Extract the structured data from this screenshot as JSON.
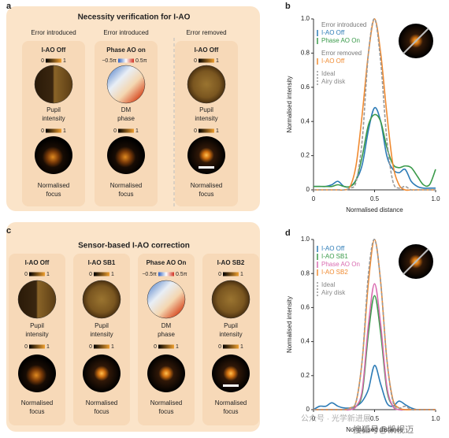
{
  "panel_a": {
    "label": "a",
    "title": "Necessity verification for I-AO",
    "columns": [
      {
        "header": "Error introduced",
        "card": "I-AO Off",
        "pupil_cbar": [
          "0",
          "1"
        ],
        "pupil_caption": [
          "Pupil",
          "intensity"
        ],
        "focus_cbar": [
          "0",
          "1"
        ],
        "focus_caption": [
          "Normalised",
          "focus"
        ]
      },
      {
        "header": "Error introduced",
        "card": "Phase AO on",
        "pupil_cbar": [
          "−0.5π",
          "0.5π"
        ],
        "pupil_caption": [
          "DM",
          "phase"
        ],
        "focus_cbar": [
          "0",
          "1"
        ],
        "focus_caption": [
          "Normalised",
          "focus"
        ]
      },
      {
        "header": "Error removed",
        "card": "I-AO Off",
        "pupil_cbar": [
          "0",
          "1"
        ],
        "pupil_caption": [
          "Pupil",
          "intensity"
        ],
        "focus_cbar": [
          "0",
          "1"
        ],
        "focus_caption": [
          "Normalised",
          "focus"
        ]
      }
    ]
  },
  "panel_c": {
    "label": "c",
    "title": "Sensor-based I-AO correction",
    "columns": [
      {
        "card": "I-AO Off",
        "pupil_cbar": [
          "0",
          "1"
        ],
        "pupil_caption": [
          "Pupil",
          "intensity"
        ],
        "focus_cbar": [
          "0",
          "1"
        ],
        "focus_caption": [
          "Normalised",
          "focus"
        ]
      },
      {
        "card": "I-AO SB1",
        "pupil_cbar": [
          "0",
          "1"
        ],
        "pupil_caption": [
          "Pupil",
          "intensity"
        ],
        "focus_cbar": [
          "0",
          "1"
        ],
        "focus_caption": [
          "Normalised",
          "focus"
        ]
      },
      {
        "card": "Phase AO On",
        "pupil_cbar": [
          "−0.5π",
          "0.5π"
        ],
        "pupil_caption": [
          "DM",
          "phase"
        ],
        "focus_cbar": [
          "0",
          "1"
        ],
        "focus_caption": [
          "Normalised",
          "focus"
        ]
      },
      {
        "card": "I-AO SB2",
        "pupil_cbar": [
          "0",
          "1"
        ],
        "pupil_caption": [
          "Pupil",
          "intensity"
        ],
        "focus_cbar": [
          "0",
          "1"
        ],
        "focus_caption": [
          "Normalised",
          "focus"
        ]
      }
    ]
  },
  "chart_data": [
    {
      "type": "line",
      "panel_label": "b",
      "x_label": "Normalised distance",
      "y_label": "Normalised intensity",
      "x": [
        0,
        0.05,
        0.1,
        0.15,
        0.2,
        0.25,
        0.3,
        0.35,
        0.4,
        0.45,
        0.5,
        0.55,
        0.6,
        0.65,
        0.7,
        0.75,
        0.8,
        0.85,
        0.9,
        0.95,
        1
      ],
      "xlim": [
        0,
        1
      ],
      "ylim": [
        0,
        1
      ],
      "xticks": [
        0,
        0.5,
        {
          "value": 1,
          "label": "1.0"
        }
      ],
      "yticks": [
        0,
        0.2,
        0.4,
        0.6,
        0.8,
        {
          "value": 1,
          "label": "1.0"
        }
      ],
      "series": [
        {
          "name": "I-AO Off",
          "group": "Error introduced",
          "color": "#2c7bb6",
          "values": [
            0.02,
            0.02,
            0.02,
            0.03,
            0.05,
            0.02,
            0.02,
            0.06,
            0.15,
            0.35,
            0.48,
            0.4,
            0.2,
            0.12,
            0.1,
            0.12,
            0.05,
            0.02,
            0.01,
            0.01,
            0.01
          ]
        },
        {
          "name": "Phase AO On",
          "group": "Error introduced",
          "color": "#3a9a4a",
          "values": [
            0.02,
            0.02,
            0.02,
            0.02,
            0.03,
            0.02,
            0.02,
            0.06,
            0.2,
            0.38,
            0.44,
            0.4,
            0.25,
            0.15,
            0.13,
            0.14,
            0.13,
            0.08,
            0.03,
            0.03,
            0.12
          ]
        },
        {
          "name": "I-AO Off",
          "group": "Error removed",
          "color": "#f08a30",
          "values": [
            0,
            0,
            0,
            0,
            0,
            0,
            0.02,
            0.15,
            0.45,
            0.8,
            1,
            0.8,
            0.45,
            0.15,
            0.03,
            0,
            0,
            0,
            0,
            0,
            0
          ]
        },
        {
          "name": "Airy disk",
          "group": "Ideal",
          "color": "#999999",
          "dashed": true,
          "values": [
            0,
            0,
            0,
            0,
            0,
            0,
            0.01,
            0.05,
            0.3,
            0.8,
            1,
            0.75,
            0.3,
            0.05,
            0.01,
            0.02,
            0,
            0,
            0,
            0,
            0
          ]
        }
      ]
    },
    {
      "type": "line",
      "panel_label": "d",
      "x_label": "Normalised distance",
      "y_label": "Normalised intensity",
      "x": [
        0,
        0.05,
        0.1,
        0.15,
        0.2,
        0.25,
        0.3,
        0.35,
        0.4,
        0.45,
        0.5,
        0.55,
        0.6,
        0.65,
        0.7,
        0.75,
        0.8,
        0.85,
        0.9,
        0.95,
        1
      ],
      "xlim": [
        0,
        1
      ],
      "ylim": [
        0,
        1
      ],
      "xticks": [
        0,
        0.5,
        {
          "value": 1,
          "label": "1.0"
        }
      ],
      "yticks": [
        0,
        0.2,
        0.4,
        0.6,
        0.8,
        {
          "value": 1,
          "label": "1.0"
        }
      ],
      "series": [
        {
          "name": "I-AO Off",
          "color": "#2c7bb6",
          "values": [
            0,
            0.02,
            0.02,
            0.04,
            0.02,
            0.01,
            0.01,
            0.02,
            0.05,
            0.12,
            0.26,
            0.15,
            0.04,
            0.02,
            0.05,
            0.03,
            0.01,
            0,
            0,
            0,
            0
          ]
        },
        {
          "name": "I-AO SB1",
          "color": "#3a9a4a",
          "values": [
            0,
            0,
            0,
            0,
            0,
            0,
            0,
            0.02,
            0.1,
            0.45,
            0.67,
            0.45,
            0.12,
            0.02,
            0,
            0,
            0,
            0,
            0,
            0,
            0
          ]
        },
        {
          "name": "Phase AO On",
          "color": "#d96bb0",
          "values": [
            0,
            0,
            0,
            0,
            0,
            0,
            0,
            0.02,
            0.12,
            0.5,
            0.74,
            0.5,
            0.14,
            0.02,
            0,
            0,
            0,
            0,
            0,
            0,
            0
          ]
        },
        {
          "name": "I-AO SB2",
          "color": "#f08a30",
          "values": [
            0,
            0,
            0,
            0,
            0,
            0,
            0.01,
            0.05,
            0.3,
            0.75,
            1,
            0.75,
            0.3,
            0.06,
            0.01,
            0,
            0,
            0,
            0,
            0,
            0
          ]
        },
        {
          "name": "Airy disk",
          "group": "Ideal",
          "color": "#999999",
          "dashed": true,
          "values": [
            0,
            0,
            0,
            0,
            0,
            0,
            0.01,
            0.05,
            0.3,
            0.8,
            1,
            0.75,
            0.3,
            0.05,
            0.01,
            0.02,
            0,
            0,
            0,
            0,
            0
          ]
        }
      ]
    }
  ],
  "watermark": {
    "line1": "公众号 · 光学新进展",
    "line2": "搜狐号@凯视迈"
  }
}
